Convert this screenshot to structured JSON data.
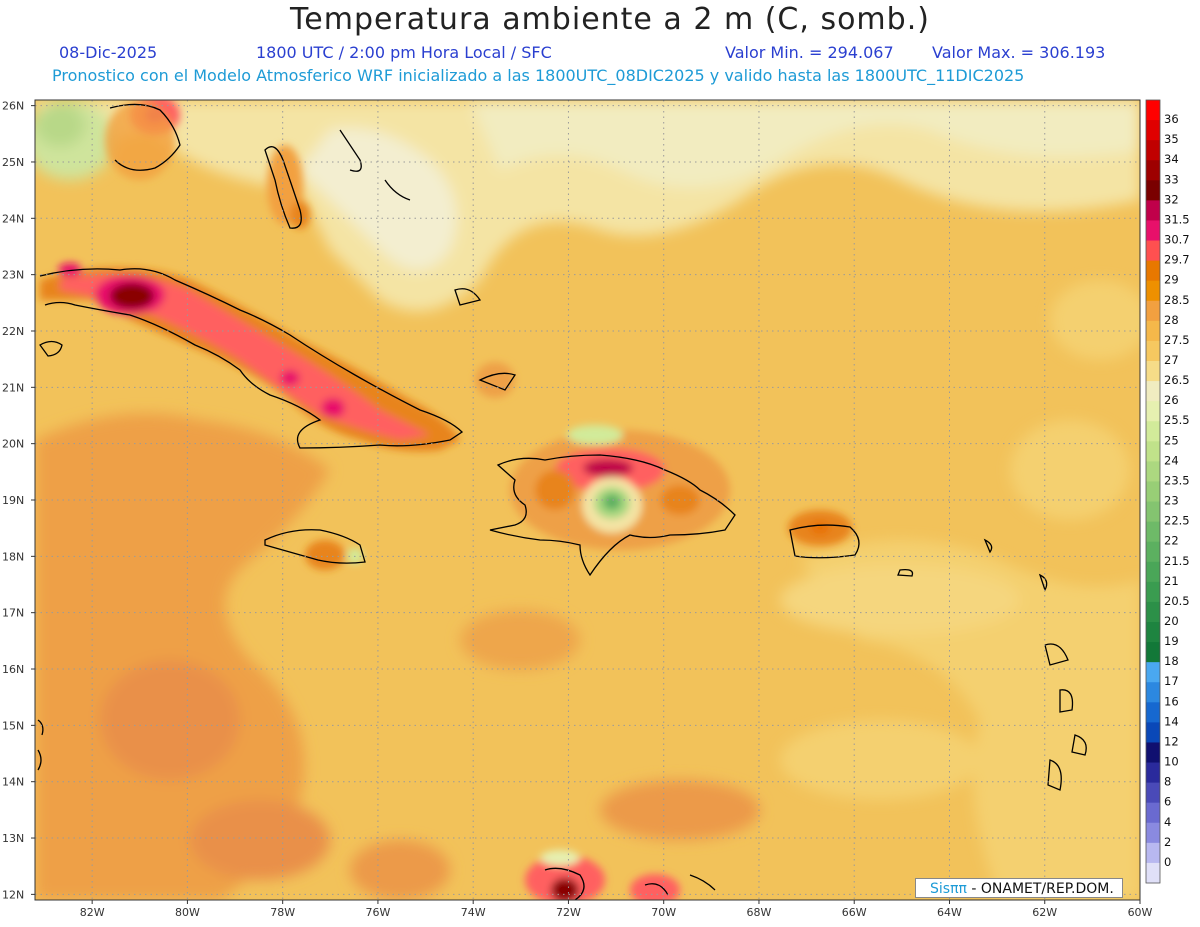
{
  "header": {
    "title": "Temperatura ambiente a 2 m (C, somb.)",
    "date": "08-Dic-2025",
    "time": "1800 UTC / 2:00 pm Hora Local / SFC",
    "min_label": "Valor Min. = 294.067",
    "max_label": "Valor Max. = 306.193",
    "model_line": "Pronostico con el Modelo Atmosferico WRF inicializado a las 1800UTC_08DIC2025 y valido hasta las  1800UTC_11DIC2025"
  },
  "axes": {
    "lat_labels": [
      "26N",
      "25N",
      "24N",
      "23N",
      "22N",
      "21N",
      "20N",
      "19N",
      "18N",
      "17N",
      "16N",
      "15N",
      "14N",
      "13N",
      "12N"
    ],
    "lon_labels": [
      "82W",
      "80W",
      "78W",
      "76W",
      "74W",
      "72W",
      "70W",
      "68W",
      "66W",
      "64W",
      "62W",
      "60W"
    ]
  },
  "legend": {
    "labels": [
      "36",
      "35",
      "34",
      "33",
      "32",
      "31.5",
      "30.7",
      "29.7",
      "29",
      "28.5",
      "28",
      "27.5",
      "27",
      "26.5",
      "26",
      "25.5",
      "25",
      "24",
      "23.5",
      "23",
      "22.5",
      "22",
      "21.5",
      "21",
      "20.5",
      "20",
      "19",
      "18",
      "17",
      "16",
      "14",
      "12",
      "10",
      "8",
      "6",
      "4",
      "2",
      "0"
    ],
    "colors": [
      "#ff0000",
      "#e00000",
      "#c00000",
      "#9e0000",
      "#7a0000",
      "#c0004a",
      "#e8106a",
      "#ff5050",
      "#e87800",
      "#ee9000",
      "#f2a040",
      "#f5b84a",
      "#f6c860",
      "#f6dc88",
      "#f0ecc0",
      "#e6f0b0",
      "#d2eb9a",
      "#c0e28a",
      "#acd880",
      "#98ce76",
      "#84c470",
      "#6eba68",
      "#5cb060",
      "#4aa658",
      "#3a9c50",
      "#2c9048",
      "#1e8440",
      "#127838",
      "#4aa8f0",
      "#2c88e0",
      "#1668d0",
      "#0a48b8",
      "#101070",
      "#2a2a9c",
      "#4a4ab8",
      "#6a6ad0",
      "#8a8ae0",
      "#b8b8f0",
      "#e0e0f8"
    ],
    "note": "labels mark the boundaries between color bands"
  },
  "map": {
    "field": "Temperatura ambiente a 2 m",
    "units": "C",
    "lon_range": [
      -83.2,
      -60.0
    ],
    "lat_range": [
      11.9,
      26.1
    ]
  },
  "credit": {
    "brand": "Sisππ",
    "org": " - ONAMET/REP.DOM."
  }
}
